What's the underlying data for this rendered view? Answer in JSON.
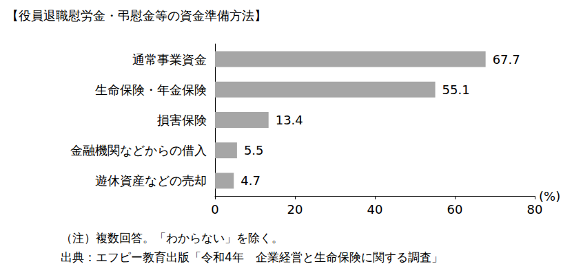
{
  "chart_data": {
    "type": "bar",
    "title": "【役員退職慰労金・弔慰金等の資金準備方法】",
    "orientation": "horizontal",
    "categories": [
      "通常事業資金",
      "生命保険・年金保険",
      "損害保険",
      "金融機関などからの借入",
      "遊休資産などの売却"
    ],
    "values": [
      67.7,
      55.1,
      13.4,
      5.5,
      4.7
    ],
    "color": "#a6a6a6",
    "xlim": [
      0,
      80
    ],
    "xticks": [
      0,
      20,
      40,
      60,
      80
    ],
    "xlabel": "(%)",
    "annotations": [
      "（注）複数回答。「わからない」を除く。",
      "出典：エフピー教育出版「令和4年　企業経営と生命保険に関する調査」"
    ],
    "grid": false,
    "data_labels": true
  }
}
